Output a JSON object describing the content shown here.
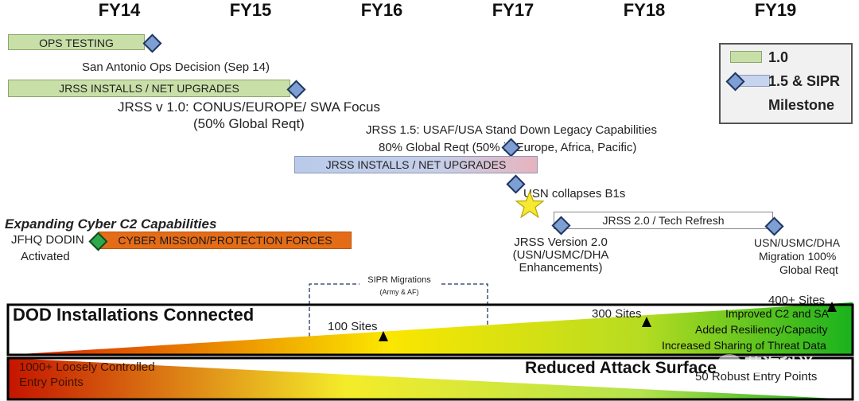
{
  "fiscal_years": [
    "FY14",
    "FY15",
    "FY16",
    "FY17",
    "FY18",
    "FY19"
  ],
  "legend": {
    "green_label": "1.0",
    "blue_label_line1": "1.5 & SIPR",
    "blue_label_line2": "Milestone"
  },
  "bars": {
    "ops_testing": "OPS TESTING",
    "jrss_installs_1": "JRSS INSTALLS / NET UPGRADES",
    "jrss_installs_2": "JRSS INSTALLS / NET UPGRADES",
    "jrss_2": "JRSS 2.0  / Tech Refresh",
    "cyber": "CYBER MISSION/PROTECTION FORCES"
  },
  "labels": {
    "san_antonio": "San Antonio Ops Decision (Sep 14)",
    "jrss_v1_line1": "JRSS v 1.0: CONUS/EUROPE/ SWA Focus",
    "jrss_v1_line2": "(50% Global Reqt)",
    "jrss15_line1": "JRSS 1.5: USAF/USA Stand Down Legacy Capabilities",
    "jrss15_line2": "80% Global Reqt (50% in Europe, Africa, Pacific)",
    "usn_collapses": "USN collapses B1s",
    "expanding": "Expanding Cyber C2 Capabilities",
    "jfhq_line1": "JFHQ DODIN",
    "jfhq_line2": "Activated",
    "jrss_v2_line1": "JRSS Version 2.0",
    "jrss_v2_line2": "(USN/USMC/DHA",
    "jrss_v2_line3": "Enhancements)",
    "usn_dha_line1": "USN/USMC/DHA",
    "usn_dha_line2": "Migration 100%",
    "usn_dha_line3": "Global Reqt",
    "sipr_line1": "SIPR Migrations",
    "sipr_line2": "(Army & AF)"
  },
  "bottom": {
    "dod_title": "DOD Installations Connected",
    "sites_100": "100 Sites",
    "sites_300": "300 Sites",
    "sites_400": "400+ Sites",
    "improved": "Improved  C2 and SA",
    "resiliency": "Added Resiliency/Capacity",
    "sharing": "Increased Sharing of Threat Data",
    "reduced": "Reduced Attack Surface",
    "loose_line1": "1000+ Loosely Controlled",
    "loose_line2": "Entry  Points",
    "robust": "50  Robust Entry Points",
    "watermark": "蓝海科学"
  },
  "colors": {
    "green_bar": "#c8dfa8",
    "blue_bar": "#b9cbea",
    "orange_bar": "#e46c17",
    "diamond_blue": "#7e9fd4",
    "star": "#f7e830"
  }
}
